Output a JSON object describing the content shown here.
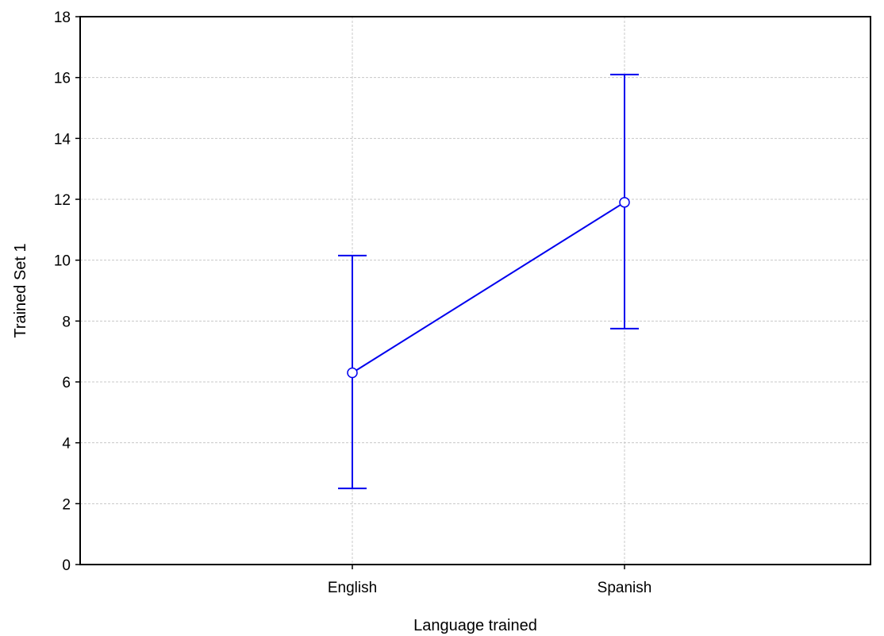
{
  "chart_data": {
    "type": "line",
    "title": "",
    "xlabel": "Language trained",
    "ylabel": "Trained Set 1",
    "categories": [
      "English",
      "Spanish"
    ],
    "series": [
      {
        "values": [
          6.3,
          11.9
        ],
        "error_low": [
          2.5,
          7.75
        ],
        "error_high": [
          10.15,
          16.1
        ]
      }
    ],
    "ylim": [
      0,
      18
    ],
    "yticks": [
      0,
      2,
      4,
      6,
      8,
      10,
      12,
      14,
      16,
      18
    ],
    "grid": true,
    "colors": {
      "series": "#0000ee",
      "grid": "#c8c8c8",
      "axis": "#000000"
    }
  }
}
